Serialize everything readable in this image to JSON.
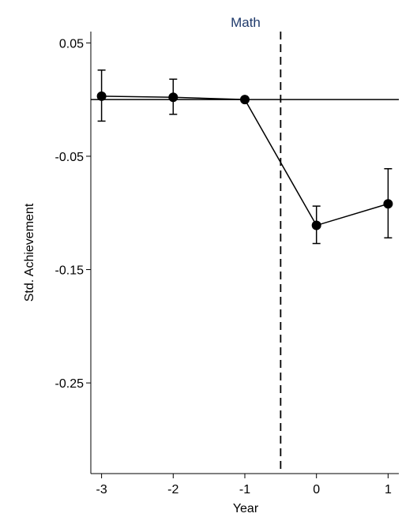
{
  "chart_data": {
    "type": "line",
    "title": "Math",
    "xlabel": "Year",
    "ylabel": "Std. Achievement",
    "x": [
      -3,
      -2,
      -1,
      0,
      1
    ],
    "xlim": [
      -3.15,
      1.15
    ],
    "ylim": [
      -0.33,
      0.06
    ],
    "x_ticks": [
      "-3",
      "-2",
      "-1",
      "0",
      "1"
    ],
    "x_tick_values": [
      -3,
      -2,
      -1,
      0,
      1
    ],
    "y_ticks": [
      "0.05",
      "-0.05",
      "-0.15",
      "-0.25"
    ],
    "y_tick_values": [
      0.05,
      -0.05,
      -0.15,
      -0.25
    ],
    "series": [
      {
        "values": [
          0.003,
          0.002,
          0.0,
          -0.111,
          -0.092
        ],
        "ci_lower": [
          -0.019,
          -0.013,
          0.0,
          -0.127,
          -0.122
        ],
        "ci_upper": [
          0.026,
          0.018,
          0.0,
          -0.094,
          -0.061
        ]
      }
    ],
    "reference_line_y": 0,
    "event_line_x": -0.5,
    "grid": false,
    "colors": {
      "title": "#1f3a6b",
      "line": "#000000"
    }
  }
}
